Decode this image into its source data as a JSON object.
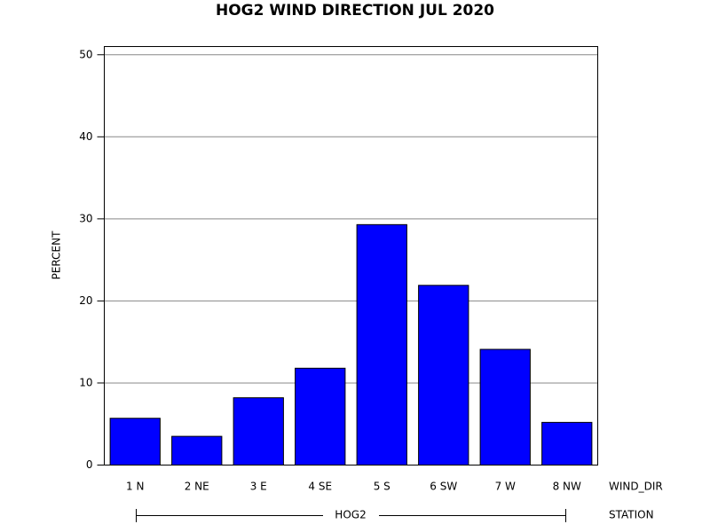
{
  "chart_data": {
    "type": "bar",
    "title": "HOG2 WIND DIRECTION JUL 2020",
    "y_label": "PERCENT",
    "x_label": "WIND_DIR",
    "group_label": "STATION",
    "group": "HOG2",
    "categories": [
      "1 N",
      "2 NE",
      "3 E",
      "4 SE",
      "5 S",
      "6 SW",
      "7 W",
      "8 NW"
    ],
    "values": [
      5.7,
      3.5,
      8.2,
      11.8,
      29.3,
      21.9,
      14.1,
      5.2
    ],
    "color": "#0000ff",
    "ylim": [
      0,
      51
    ],
    "yticks": [
      0,
      10,
      20,
      30,
      40,
      50
    ],
    "grid": true
  }
}
